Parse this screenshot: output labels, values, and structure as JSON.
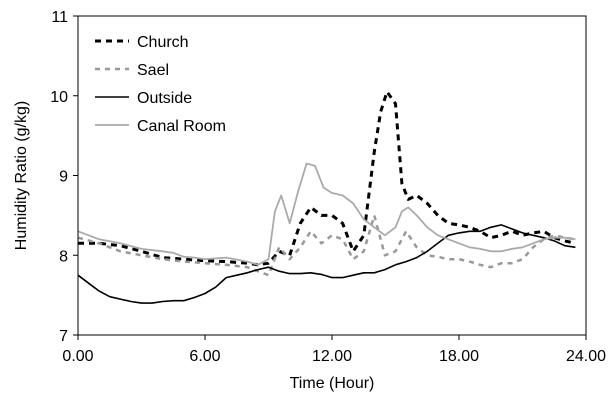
{
  "chart_data": {
    "type": "line",
    "title": "",
    "xlabel": "Time (Hour)",
    "ylabel": "Humidity Ratio (g/kg)",
    "xlim": [
      0,
      24
    ],
    "ylim": [
      7,
      11
    ],
    "x_ticks": [
      0,
      6,
      12,
      18,
      24
    ],
    "x_tick_labels": [
      "0.00",
      "6.00",
      "12.00",
      "18.00",
      "24.00"
    ],
    "y_ticks": [
      7,
      8,
      9,
      10,
      11
    ],
    "y_tick_labels": [
      "7",
      "8",
      "9",
      "10",
      "11"
    ],
    "grid": false,
    "legend_position": "top-left",
    "series": [
      {
        "name": "Church",
        "color": "#000000",
        "style": "dashed",
        "x": [
          0,
          1,
          2,
          3,
          4,
          5,
          6,
          7,
          8,
          8.5,
          9,
          9.5,
          10,
          10.5,
          11,
          11.5,
          12,
          12.5,
          13,
          13.5,
          14,
          14.3,
          14.6,
          15,
          15.3,
          15.6,
          16,
          16.5,
          17,
          17.5,
          18,
          18.5,
          19,
          19.5,
          20,
          20.5,
          21,
          21.5,
          22,
          22.5,
          23,
          23.5
        ],
        "y": [
          8.15,
          8.15,
          8.12,
          8.05,
          7.97,
          7.95,
          7.93,
          7.92,
          7.9,
          7.88,
          7.9,
          8.05,
          8.0,
          8.4,
          8.6,
          8.5,
          8.5,
          8.4,
          8.05,
          8.25,
          9.3,
          9.8,
          10.05,
          9.9,
          8.9,
          8.7,
          8.75,
          8.65,
          8.5,
          8.4,
          8.38,
          8.35,
          8.3,
          8.22,
          8.25,
          8.3,
          8.25,
          8.28,
          8.3,
          8.22,
          8.18,
          8.15
        ]
      },
      {
        "name": "Sael",
        "color": "#999999",
        "style": "dashed",
        "x": [
          0,
          1,
          2,
          3,
          4,
          5,
          6,
          7,
          8,
          8.5,
          9,
          9.5,
          10,
          10.5,
          11,
          11.5,
          12,
          12.5,
          13,
          13.5,
          14,
          14.5,
          15,
          15.5,
          16,
          16.5,
          17,
          17.5,
          18,
          18.5,
          19,
          19.5,
          20,
          20.5,
          21,
          21.5,
          22,
          22.5,
          23,
          23.5
        ],
        "y": [
          8.22,
          8.15,
          8.05,
          8.0,
          7.95,
          7.92,
          7.9,
          7.88,
          7.85,
          7.8,
          7.75,
          8.1,
          7.95,
          8.1,
          8.3,
          8.15,
          8.25,
          8.2,
          7.95,
          8.05,
          8.5,
          8.0,
          8.05,
          8.3,
          8.1,
          8.0,
          7.98,
          7.95,
          7.95,
          7.92,
          7.88,
          7.85,
          7.9,
          7.9,
          7.95,
          8.1,
          8.2,
          8.25,
          8.22,
          8.2
        ]
      },
      {
        "name": "Outside",
        "color": "#000000",
        "style": "solid",
        "x": [
          0,
          0.5,
          1,
          1.5,
          2,
          2.5,
          3,
          3.5,
          4,
          4.5,
          5,
          5.5,
          6,
          6.5,
          7,
          7.5,
          8,
          8.5,
          9,
          9.5,
          10,
          10.5,
          11,
          11.5,
          12,
          12.5,
          13,
          13.5,
          14,
          14.5,
          15,
          15.5,
          16,
          16.5,
          17,
          17.5,
          18,
          18.5,
          19,
          19.5,
          20,
          20.5,
          21,
          21.5,
          22,
          22.5,
          23,
          23.5
        ],
        "y": [
          7.75,
          7.65,
          7.55,
          7.48,
          7.45,
          7.42,
          7.4,
          7.4,
          7.42,
          7.43,
          7.43,
          7.47,
          7.52,
          7.6,
          7.72,
          7.75,
          7.78,
          7.82,
          7.85,
          7.8,
          7.77,
          7.77,
          7.78,
          7.76,
          7.72,
          7.72,
          7.75,
          7.78,
          7.78,
          7.82,
          7.88,
          7.92,
          7.97,
          8.05,
          8.15,
          8.25,
          8.28,
          8.3,
          8.3,
          8.35,
          8.38,
          8.33,
          8.28,
          8.25,
          8.22,
          8.18,
          8.12,
          8.1
        ]
      },
      {
        "name": "Canal Room",
        "color": "#aaaaaa",
        "style": "solid",
        "x": [
          0,
          1,
          2,
          3,
          4,
          4.5,
          5,
          5.5,
          6,
          7,
          8,
          8.5,
          9,
          9.3,
          9.6,
          10,
          10.4,
          10.8,
          11.2,
          11.6,
          12,
          12.5,
          13,
          13.5,
          14,
          14.5,
          15,
          15.3,
          15.6,
          16,
          16.5,
          17,
          17.5,
          18,
          18.5,
          19,
          19.5,
          20,
          20.5,
          21,
          21.5,
          22,
          22.5,
          23,
          23.5
        ],
        "y": [
          8.3,
          8.2,
          8.15,
          8.08,
          8.05,
          8.03,
          7.98,
          7.97,
          7.95,
          7.97,
          7.92,
          7.88,
          7.95,
          8.55,
          8.75,
          8.4,
          8.8,
          9.15,
          9.12,
          8.85,
          8.78,
          8.75,
          8.65,
          8.45,
          8.35,
          8.25,
          8.35,
          8.55,
          8.6,
          8.5,
          8.35,
          8.25,
          8.2,
          8.15,
          8.1,
          8.08,
          8.05,
          8.05,
          8.08,
          8.1,
          8.15,
          8.2,
          8.22,
          8.22,
          8.2
        ]
      }
    ]
  }
}
